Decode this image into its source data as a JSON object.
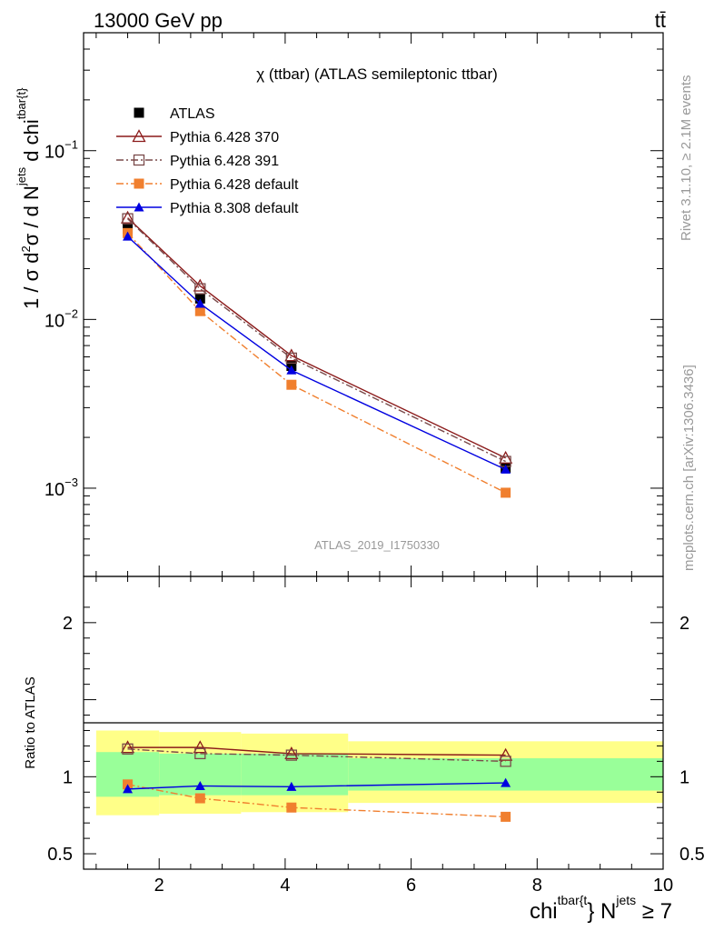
{
  "header": {
    "energy_label": "13000 GeV pp",
    "process_label": "tt̄"
  },
  "side_labels": {
    "rivet": "Rivet 3.1.10, ≥ 2.1M events",
    "mcplots": "mcplots.cern.ch [arXiv:1306.3436]"
  },
  "analysis_id": "ATLAS_2019_I1750330",
  "chart_data": [
    {
      "type": "line",
      "title": "χ (ttbar) (ATLAS semileptonic ttbar)",
      "ylabel": "1 / σ d²σ / d N^jets d chi^tbar{t}",
      "yscale": "log",
      "ylim": [
        0.0003,
        0.5
      ],
      "xlim": [
        0.8,
        10
      ],
      "yticks": [
        {
          "value": 0.1,
          "base": "10",
          "exp": "−1"
        },
        {
          "value": 0.01,
          "base": "10",
          "exp": "−2"
        },
        {
          "value": 0.001,
          "base": "10",
          "exp": "−3"
        }
      ],
      "legend_position": "top-left",
      "series": [
        {
          "name": "ATLAS",
          "color": "#000000",
          "marker": "square-filled",
          "line": "none",
          "x": [
            1.5,
            2.65,
            4.1,
            7.5
          ],
          "y": [
            0.0345,
            0.0133,
            0.0053,
            0.00132
          ]
        },
        {
          "name": "Pythia 6.428 370",
          "color": "#8b1a1a",
          "marker": "triangle-open",
          "line": "solid",
          "x": [
            1.5,
            2.65,
            4.1,
            7.5
          ],
          "y": [
            0.04,
            0.0158,
            0.0061,
            0.00151
          ]
        },
        {
          "name": "Pythia 6.428 391",
          "color": "#7a4a4a",
          "marker": "square-open",
          "line": "dashdot",
          "x": [
            1.5,
            2.65,
            4.1,
            7.5
          ],
          "y": [
            0.0395,
            0.0152,
            0.0059,
            0.00144
          ]
        },
        {
          "name": "Pythia 6.428 default",
          "color": "#f07f2e",
          "marker": "square-filled",
          "line": "dashdot",
          "x": [
            1.5,
            2.65,
            4.1,
            7.5
          ],
          "y": [
            0.0325,
            0.0112,
            0.0041,
            0.00094
          ]
        },
        {
          "name": "Pythia 8.308 default",
          "color": "#0000e0",
          "marker": "triangle-filled",
          "line": "solid",
          "x": [
            1.5,
            2.65,
            4.1,
            7.5
          ],
          "y": [
            0.031,
            0.0124,
            0.005,
            0.00129
          ]
        }
      ]
    },
    {
      "type": "line",
      "ylabel": "Ratio to ATLAS",
      "xlabel": "chi^tbar{t} N^jets ≥ 7",
      "ylim": [
        0.4,
        2.3
      ],
      "xlim": [
        0.8,
        10
      ],
      "xticks": [
        2,
        4,
        6,
        8,
        10
      ],
      "yticks": [
        0.5,
        1,
        2
      ],
      "bands": [
        {
          "x0": 1.0,
          "x1": 2.0,
          "yellow": [
            0.75,
            1.3
          ],
          "green": [
            0.87,
            1.16
          ]
        },
        {
          "x0": 2.0,
          "x1": 3.3,
          "yellow": [
            0.76,
            1.29
          ],
          "green": [
            0.88,
            1.15
          ]
        },
        {
          "x0": 3.3,
          "x1": 5.0,
          "yellow": [
            0.77,
            1.28
          ],
          "green": [
            0.88,
            1.15
          ]
        },
        {
          "x0": 5.0,
          "x1": 10.0,
          "yellow": [
            0.83,
            1.23
          ],
          "green": [
            0.91,
            1.12
          ]
        }
      ],
      "series": [
        {
          "name": "Pythia 6.428 370",
          "x": [
            1.5,
            2.65,
            4.1,
            7.5
          ],
          "y": [
            1.19,
            1.19,
            1.15,
            1.14
          ]
        },
        {
          "name": "Pythia 6.428 391",
          "x": [
            1.5,
            2.65,
            4.1,
            7.5
          ],
          "y": [
            1.18,
            1.15,
            1.14,
            1.1
          ]
        },
        {
          "name": "Pythia 6.428 default",
          "x": [
            1.5,
            2.65,
            4.1,
            7.5
          ],
          "y": [
            0.95,
            0.86,
            0.8,
            0.74
          ]
        },
        {
          "name": "Pythia 8.308 default",
          "x": [
            1.5,
            2.65,
            4.1,
            7.5
          ],
          "y": [
            0.92,
            0.94,
            0.935,
            0.96
          ]
        }
      ]
    }
  ]
}
